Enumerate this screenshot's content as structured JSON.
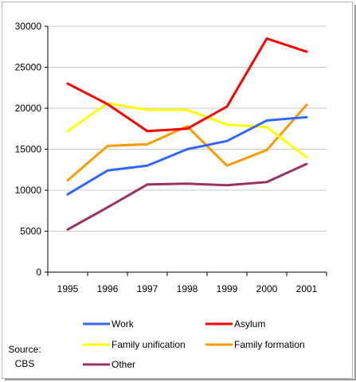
{
  "chart_data": {
    "type": "line",
    "x": [
      "1995",
      "1996",
      "1997",
      "1998",
      "1999",
      "2000",
      "2001"
    ],
    "yticks": [
      "0",
      "5000",
      "10000",
      "15000",
      "20000",
      "25000",
      "30000"
    ],
    "ylim": [
      0,
      30000
    ],
    "grid": true,
    "legend_position": "bottom",
    "series": [
      {
        "name": "Work",
        "color": "#3366ff",
        "values": [
          9500,
          12400,
          13000,
          15000,
          16000,
          18500,
          18900
        ]
      },
      {
        "name": "Asylum",
        "color": "#ff0000",
        "values": [
          23000,
          20500,
          17200,
          17500,
          20200,
          28500,
          26900
        ]
      },
      {
        "name": "Family unification",
        "color": "#ffff00",
        "values": [
          17200,
          20600,
          19800,
          19800,
          18000,
          17700,
          14000
        ]
      },
      {
        "name": "Family formation",
        "color": "#ff9900",
        "values": [
          11200,
          15400,
          15600,
          17800,
          13000,
          14900,
          20400
        ]
      },
      {
        "name": "Other",
        "color": "#993366",
        "values": [
          5200,
          7900,
          10700,
          10800,
          10600,
          11000,
          13200
        ]
      }
    ]
  },
  "source": {
    "line1": "Source:",
    "line2": "CBS"
  }
}
